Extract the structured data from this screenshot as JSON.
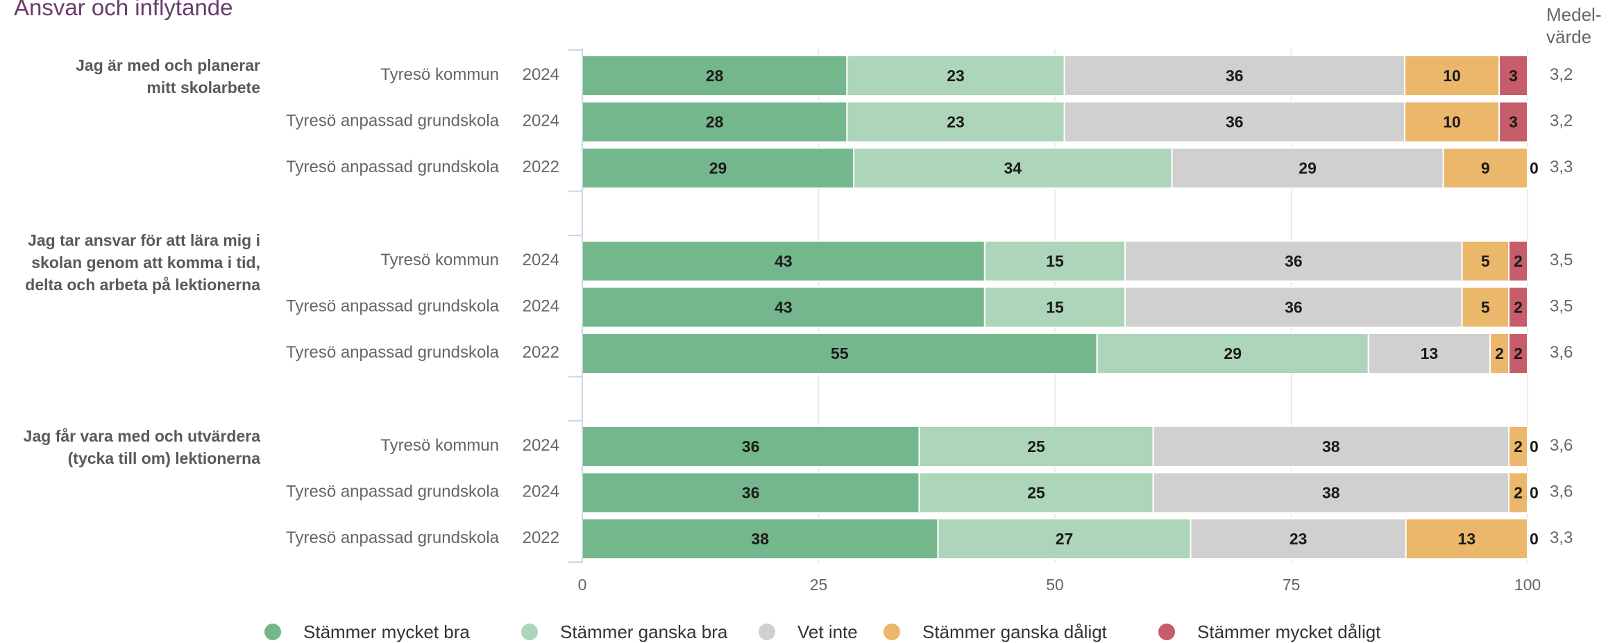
{
  "chart_data": {
    "type": "bar",
    "orientation": "horizontal",
    "stacked": true,
    "title": "Ansvar och inflytande",
    "mean_header": [
      "Medel-",
      "värde"
    ],
    "xlim": [
      0,
      100
    ],
    "xticks": [
      "0",
      "25",
      "50",
      "75",
      "100"
    ],
    "grid": true,
    "legend_position": "bottom",
    "series": [
      {
        "name": "Stämmer mycket bra",
        "color": "#75b78d"
      },
      {
        "name": "Stämmer ganska bra",
        "color": "#acd5b9"
      },
      {
        "name": "Vet inte",
        "color": "#d0d0d0"
      },
      {
        "name": "Stämmer ganska dåligt",
        "color": "#ebb76a"
      },
      {
        "name": "Stämmer mycket dåligt",
        "color": "#c75c6b"
      }
    ],
    "groups": [
      {
        "question_lines": [
          "Jag är med och planerar",
          "mitt skolarbete"
        ],
        "rows": [
          {
            "label": "Tyresö kommun",
            "year": "2024",
            "values": [
              28,
              23,
              36,
              10,
              3
            ],
            "mean": "3,2"
          },
          {
            "label": "Tyresö anpassad grundskola",
            "year": "2024",
            "values": [
              28,
              23,
              36,
              10,
              3
            ],
            "mean": "3,2"
          },
          {
            "label": "Tyresö anpassad grundskola",
            "year": "2022",
            "values": [
              29,
              34,
              29,
              9,
              0
            ],
            "mean": "3,3"
          }
        ]
      },
      {
        "question_lines": [
          "Jag tar ansvar för att lära mig i",
          "skolan genom att komma i tid,",
          "delta och arbeta på lektionerna"
        ],
        "rows": [
          {
            "label": "Tyresö kommun",
            "year": "2024",
            "values": [
              43,
              15,
              36,
              5,
              2
            ],
            "mean": "3,5"
          },
          {
            "label": "Tyresö anpassad grundskola",
            "year": "2024",
            "values": [
              43,
              15,
              36,
              5,
              2
            ],
            "mean": "3,5"
          },
          {
            "label": "Tyresö anpassad grundskola",
            "year": "2022",
            "values": [
              55,
              29,
              13,
              2,
              2
            ],
            "mean": "3,6"
          }
        ]
      },
      {
        "question_lines": [
          "Jag får vara med och utvärdera",
          "(tycka till om) lektionerna"
        ],
        "rows": [
          {
            "label": "Tyresö kommun",
            "year": "2024",
            "values": [
              36,
              25,
              38,
              2,
              0
            ],
            "mean": "3,6"
          },
          {
            "label": "Tyresö anpassad grundskola",
            "year": "2024",
            "values": [
              36,
              25,
              38,
              2,
              0
            ],
            "mean": "3,6"
          },
          {
            "label": "Tyresö anpassad grundskola",
            "year": "2022",
            "values": [
              38,
              27,
              23,
              13,
              0
            ],
            "mean": "3,3"
          }
        ]
      }
    ]
  }
}
